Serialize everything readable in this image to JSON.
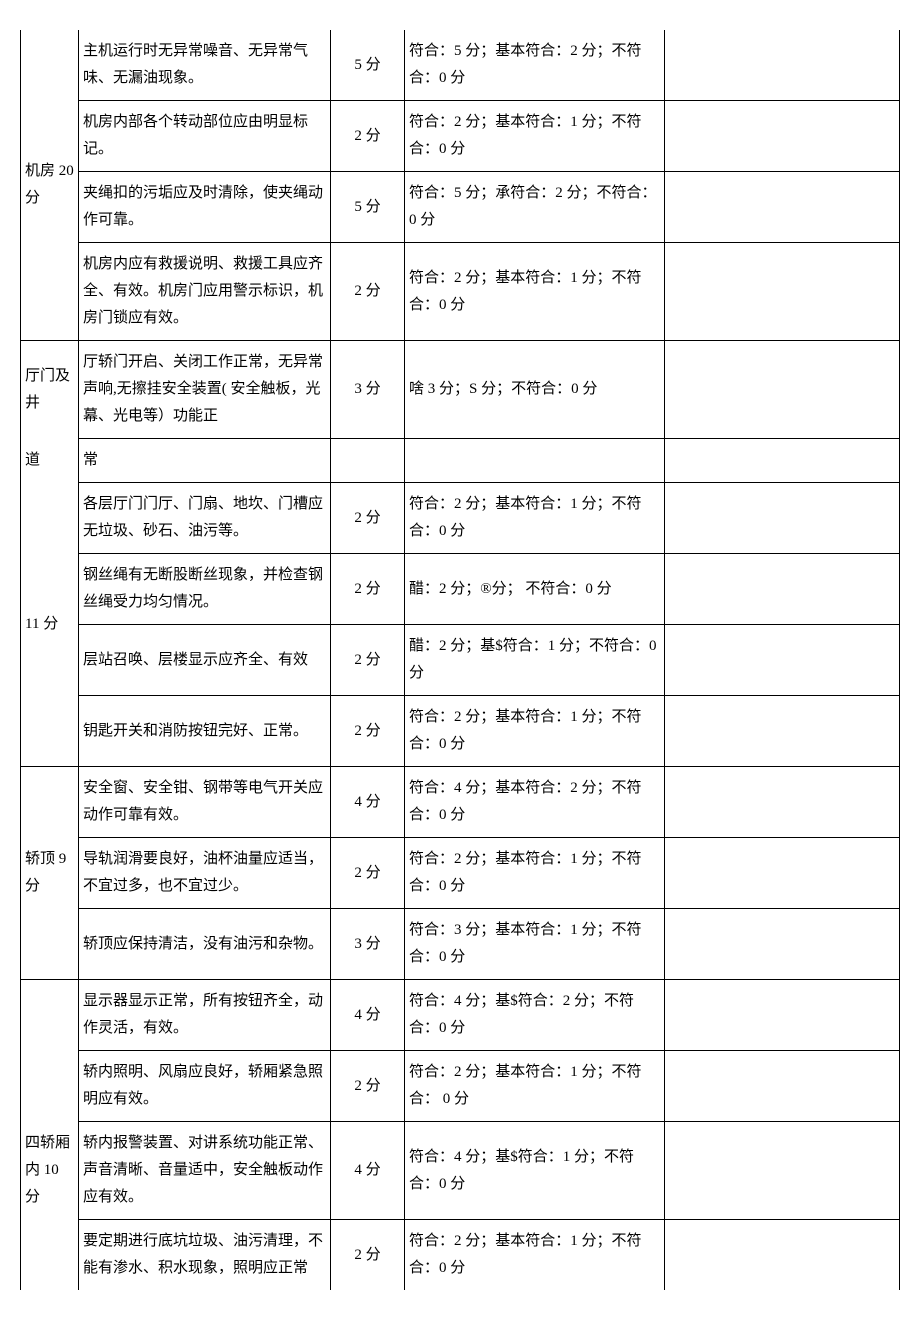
{
  "categories": {
    "machineRoom": "机房 20 分",
    "hallDoor1": "厅门及井",
    "hallDoor2": "道",
    "hallDoor3": "11 分",
    "carTop": "轿顶 9 分",
    "carInside": "四轿厢内 10 分"
  },
  "rows": [
    {
      "desc": "主机运行时无异常噪音、无异常气味、无漏油现象。",
      "pts": "5 分",
      "crit": "符合：5 分；基本符合：2 分；不符合：0 分"
    },
    {
      "desc": "机房内部各个转动部位应由明显标记。",
      "pts": "2 分",
      "crit": "符合：2 分；基本符合：1 分；不符合：0 分"
    },
    {
      "desc": "夹绳扣的污垢应及时清除，使夹绳动作可靠。",
      "pts": "5 分",
      "crit": "符合：5 分；承符合：2 分；不符合：0 分"
    },
    {
      "desc": "机房内应有救援说明、救援工具应齐全、有效。机房门应用警示标识，机房门锁应有效。",
      "pts": "2 分",
      "crit": "符合：2 分；基本符合：1 分；不符合：0 分"
    },
    {
      "desc": "厅轿门开启、关闭工作正常，无异常声响,无擦挂安全装置( 安全触板，光幕、光电等）功能正",
      "pts": "3 分",
      "crit": "啥 3 分；S 分；不符合：0 分"
    },
    {
      "desc": "常",
      "pts": "",
      "crit": ""
    },
    {
      "desc": "各层厅门门厅、门扇、地坎、门槽应无垃圾、砂石、油污等。",
      "pts": "2 分",
      "crit": "符合：2 分；基本符合：1 分；不符合：0 分"
    },
    {
      "desc": "钢丝绳有无断股断丝现象，并检查钢丝绳受力均匀情况。",
      "pts": "2 分",
      "crit": "醋：2 分；®分；\n不符合：0 分"
    },
    {
      "desc": "层站召唤、层楼显示应齐全、有效",
      "pts": "2 分",
      "crit": "醋：2 分；基$符合：1 分；不符合：0 分"
    },
    {
      "desc": "钥匙开关和消防按钮完好、正常。",
      "pts": "2 分",
      "crit": "符合：2 分；基本符合：1 分；不符合：0 分"
    },
    {
      "desc": "安全窗、安全钳、钢带等电气开关应动作可靠有效。",
      "pts": "4 分",
      "crit": "符合：4 分；基本符合：2 分；不符合：0 分"
    },
    {
      "desc": "导轨润滑要良好，油杯油量应适当，不宜过多，也不宜过少。",
      "pts": "2 分",
      "crit": "符合：2 分；基本符合：1 分；不符合：0 分"
    },
    {
      "desc": "轿顶应保持清洁，没有油污和杂物。",
      "pts": "3 分",
      "crit": "符合：3 分；基本符合：1 分；不符合：0 分"
    },
    {
      "desc": "显示器显示正常，所有按钮齐全，动作灵活，有效。",
      "pts": "4 分",
      "crit": "符合：4 分；基$符合：2 分；不符合：0 分"
    },
    {
      "desc": "轿内照明、风扇应良好，轿厢紧急照明应有效。",
      "pts": "2 分",
      "crit": "符合：2 分；基本符合：1 分；不符合： 0 分"
    },
    {
      "desc": "轿内报警装置、对讲系统功能正常、声音清晰、音量适中，安全触板动作应有效。",
      "pts": "4 分",
      "crit": "符合：4 分；基$符合：1 分；不符合：0 分"
    },
    {
      "desc": "要定期进行底坑垃圾、油污清理，不能有渗水、积水现象，照明应正常",
      "pts": "2 分",
      "crit": "符合：2 分；基本符合：1 分；不符合：0 分"
    }
  ]
}
